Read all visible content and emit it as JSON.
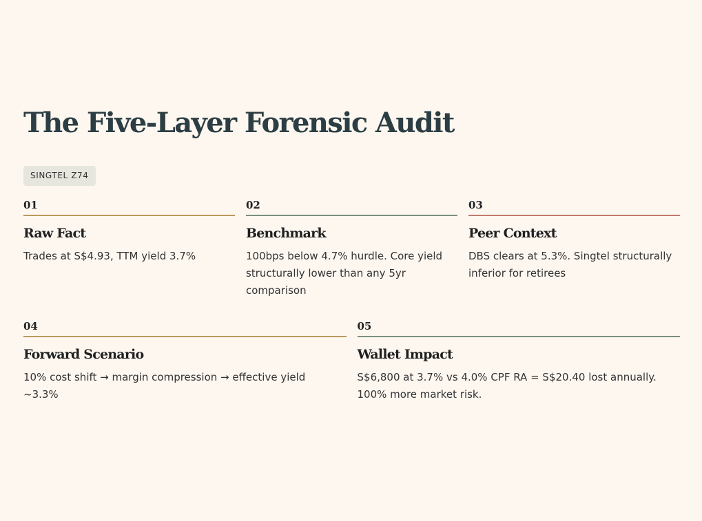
{
  "title": "The Five-Layer Forensic Audit",
  "tag": "SINGTEL Z74",
  "colors": {
    "background": "#fdf7f0",
    "title": "#2c3e44",
    "gold": "#b99a5c",
    "green": "#7b8f7b",
    "red": "#c47a6a"
  },
  "layers": [
    {
      "number": "01",
      "heading": "Raw Fact",
      "text": "Trades at S$4.93, TTM yield 3.7%"
    },
    {
      "number": "02",
      "heading": "Benchmark",
      "text": "100bps below 4.7% hurdle. Core yield structurally lower than any 5yr comparison"
    },
    {
      "number": "03",
      "heading": "Peer Context",
      "text": "DBS clears at 5.3%. Singtel structurally inferior for retirees"
    },
    {
      "number": "04",
      "heading": "Forward Scenario",
      "text": "10% cost shift → margin compression → effective yield ~3.3%"
    },
    {
      "number": "05",
      "heading": "Wallet Impact",
      "text": "S$6,800 at 3.7% vs 4.0% CPF RA = S$20.40 lost annually. 100% more market risk."
    }
  ]
}
